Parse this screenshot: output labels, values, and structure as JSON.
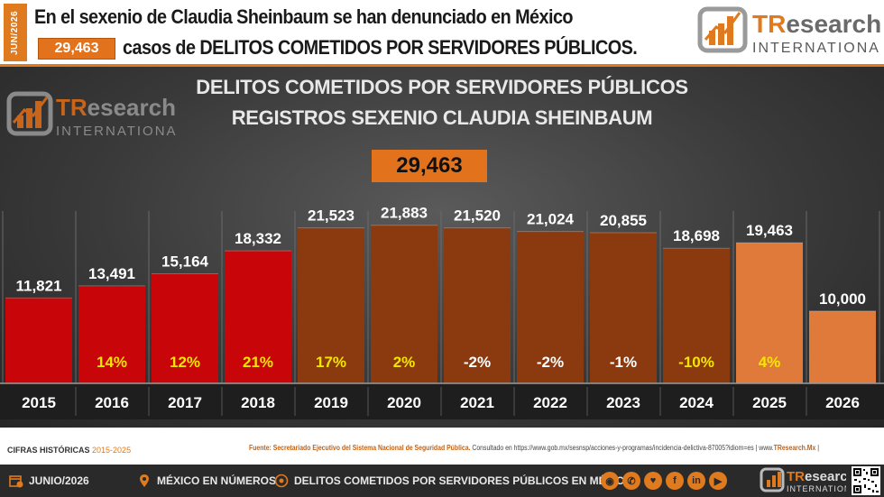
{
  "header": {
    "side_tag": "JUN/2026",
    "headline_line1": "En el sexenio de Claudia Sheinbaum se han denunciado en México",
    "headline_count": "29,463",
    "headline_line2": "casos de DELITOS COMETIDOS POR SERVIDORES PÚBLICOS."
  },
  "logo": {
    "brand_tr": "TR",
    "brand_rest": "esearch",
    "subtitle": "INTERNATIONAL"
  },
  "chart": {
    "title_line1": "DELITOS COMETIDOS POR SERVIDORES PÚBLICOS",
    "title_line2": "REGISTROS SEXENIO CLAUDIA SHEINBAUM",
    "total": "29,463"
  },
  "chart_data": {
    "type": "bar",
    "categories": [
      "2015",
      "2016",
      "2017",
      "2018",
      "2019",
      "2020",
      "2021",
      "2022",
      "2023",
      "2024",
      "2025",
      "2026"
    ],
    "values": [
      11821,
      13491,
      15164,
      18332,
      21523,
      21883,
      21520,
      21024,
      20855,
      18698,
      19463,
      10000
    ],
    "value_labels": [
      "11,821",
      "13,491",
      "15,164",
      "18,332",
      "21,523",
      "21,883",
      "21,520",
      "21,024",
      "20,855",
      "18,698",
      "19,463",
      "10,000"
    ],
    "pct_labels": [
      "",
      "14%",
      "12%",
      "21%",
      "17%",
      "2%",
      "-2%",
      "-2%",
      "-1%",
      "-10%",
      "4%",
      ""
    ],
    "bar_colors": [
      "#c8060a",
      "#c8060a",
      "#c8060a",
      "#c8060a",
      "#8a3a0e",
      "#8a3a0e",
      "#8a3a0e",
      "#8a3a0e",
      "#8a3a0e",
      "#8a3a0e",
      "#e07a3a",
      "#e07a3a"
    ],
    "pct_colors": [
      "#f5e600",
      "#f5e600",
      "#f5e600",
      "#f5e600",
      "#f5e600",
      "#f5e600",
      "#ffffff",
      "#ffffff",
      "#ffffff",
      "#f5e600",
      "#f5e600",
      "#ffffff"
    ],
    "title": "DELITOS COMETIDOS POR SERVIDORES PÚBLICOS",
    "subtitle": "REGISTROS SEXENIO CLAUDIA SHEINBAUM",
    "xlabel": "",
    "ylabel": "",
    "ylim": [
      0,
      24000
    ],
    "grid": false
  },
  "sources": {
    "cifras_label": "CIFRAS HISTÓRICAS",
    "cifras_range": "2015-2025",
    "fuente_prefix": "Fuente: Secretariado Ejecutivo del Sistema Nacional de Seguridad Pública.",
    "fuente_rest": "Consultado en https://www.gob.mx/sesnsp/acciones-y-programas/incidencia-delictiva-87005?idiom=es | www.",
    "fuente_brand": "TResearch.Mx",
    "fuente_end": " |"
  },
  "footer": {
    "date": "JUNIO/2026",
    "section": "MÉXICO EN NÚMEROS",
    "topic": "DELITOS COMETIDOS POR SERVIDORES PÚBLICOS EN MÉXICO",
    "social_glyphs": [
      "◉",
      "✆",
      "♥",
      "f",
      "in",
      "▶"
    ]
  },
  "colors": {
    "accent": "#e07a1e",
    "red": "#c8060a",
    "brown": "#8a3a0e",
    "light_orange": "#e07a3a",
    "highlight": "#f5e600"
  }
}
